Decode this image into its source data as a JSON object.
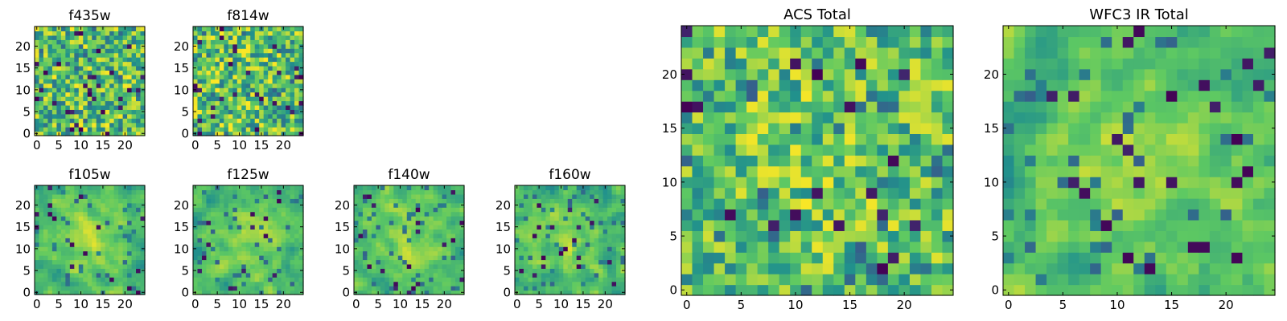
{
  "figure": {
    "colormap": "viridis",
    "colormap_stops": [
      "#440154",
      "#3b528b",
      "#21918c",
      "#5ec962",
      "#fde725"
    ]
  },
  "chart_data": [
    {
      "type": "heatmap",
      "title": "f435w",
      "grid_size": 25,
      "xlim": [
        0,
        24
      ],
      "ylim": [
        0,
        24
      ],
      "xticks": [
        0,
        5,
        10,
        15,
        20
      ],
      "yticks": [
        0,
        5,
        10,
        15,
        20
      ],
      "seed": 435,
      "smooth": 0,
      "center_boost": 0.0,
      "dark_fraction": 0.05
    },
    {
      "type": "heatmap",
      "title": "f814w",
      "grid_size": 25,
      "xlim": [
        0,
        24
      ],
      "ylim": [
        0,
        24
      ],
      "xticks": [
        0,
        5,
        10,
        15,
        20
      ],
      "yticks": [
        0,
        5,
        10,
        15,
        20
      ],
      "seed": 814,
      "smooth": 0,
      "center_boost": 0.0,
      "dark_fraction": 0.05
    },
    {
      "type": "heatmap",
      "title": "f105w",
      "grid_size": 25,
      "xlim": [
        0,
        24
      ],
      "ylim": [
        0,
        24
      ],
      "xticks": [
        0,
        5,
        10,
        15,
        20
      ],
      "yticks": [
        0,
        5,
        10,
        15,
        20
      ],
      "seed": 105,
      "smooth": 1,
      "center_boost": 0.35,
      "dark_fraction": 0.03
    },
    {
      "type": "heatmap",
      "title": "f125w",
      "grid_size": 25,
      "xlim": [
        0,
        24
      ],
      "ylim": [
        0,
        24
      ],
      "xticks": [
        0,
        5,
        10,
        15,
        20
      ],
      "yticks": [
        0,
        5,
        10,
        15,
        20
      ],
      "seed": 125,
      "smooth": 1,
      "center_boost": 0.35,
      "dark_fraction": 0.03
    },
    {
      "type": "heatmap",
      "title": "f140w",
      "grid_size": 25,
      "xlim": [
        0,
        24
      ],
      "ylim": [
        0,
        24
      ],
      "xticks": [
        0,
        5,
        10,
        15,
        20
      ],
      "yticks": [
        0,
        5,
        10,
        15,
        20
      ],
      "seed": 140,
      "smooth": 1,
      "center_boost": 0.35,
      "dark_fraction": 0.03
    },
    {
      "type": "heatmap",
      "title": "f160w",
      "grid_size": 25,
      "xlim": [
        0,
        24
      ],
      "ylim": [
        0,
        24
      ],
      "xticks": [
        0,
        5,
        10,
        15,
        20
      ],
      "yticks": [
        0,
        5,
        10,
        15,
        20
      ],
      "seed": 160,
      "smooth": 1,
      "center_boost": 0.35,
      "dark_fraction": 0.03
    },
    {
      "type": "heatmap",
      "title": "ACS Total",
      "grid_size": 25,
      "xlim": [
        0,
        24
      ],
      "ylim": [
        0,
        24
      ],
      "xticks": [
        0,
        5,
        10,
        15,
        20
      ],
      "yticks": [
        0,
        5,
        10,
        15,
        20
      ],
      "seed": 9001,
      "smooth": 0,
      "center_boost": 0.1,
      "dark_fraction": 0.04
    },
    {
      "type": "heatmap",
      "title": "WFC3 IR Total",
      "grid_size": 25,
      "xlim": [
        0,
        24
      ],
      "ylim": [
        0,
        24
      ],
      "xticks": [
        0,
        5,
        10,
        15,
        20
      ],
      "yticks": [
        0,
        5,
        10,
        15,
        20
      ],
      "seed": 9002,
      "smooth": 1,
      "center_boost": 0.3,
      "dark_fraction": 0.03
    }
  ]
}
